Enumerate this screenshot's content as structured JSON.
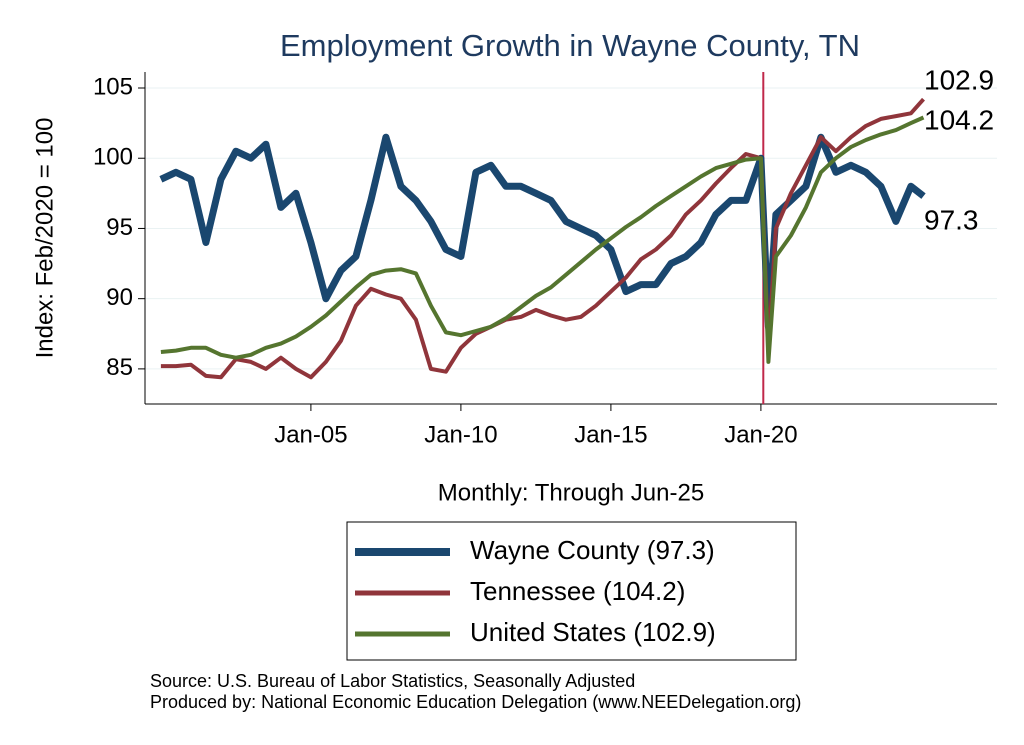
{
  "chart_data": {
    "type": "line",
    "title": "Employment Growth in Wayne  County, TN",
    "x_label": "Monthly: Through Jun-25",
    "y_label": "Index: Feb/2020 = 100",
    "source": "Source: U.S. Bureau of Labor Statistics, Seasonally Adjusted",
    "produced_by": "Produced by: National Economic Education Delegation (www.NEEDelegation.org)",
    "x": [
      2000,
      2000.5,
      2001,
      2001.5,
      2002,
      2002.5,
      2003,
      2003.5,
      2004,
      2004.5,
      2005,
      2005.5,
      2006,
      2006.5,
      2007,
      2007.5,
      2008,
      2008.5,
      2009,
      2009.5,
      2010,
      2010.5,
      2011,
      2011.5,
      2012,
      2012.5,
      2013,
      2013.5,
      2014,
      2014.5,
      2015,
      2015.5,
      2016,
      2016.5,
      2017,
      2017.5,
      2018,
      2018.5,
      2019,
      2019.5,
      2020,
      2020.25,
      2020.5,
      2021,
      2021.5,
      2022,
      2022.5,
      2023,
      2023.5,
      2024,
      2024.5,
      2025,
      2025.42
    ],
    "series": [
      {
        "name": "Wayne  County (97.3)",
        "color": "#1a476f",
        "values": [
          98.5,
          99,
          98.5,
          94,
          98.5,
          100.5,
          100,
          101,
          96.5,
          97.5,
          94,
          90,
          92,
          93,
          97,
          101.5,
          98,
          97,
          95.5,
          93.5,
          93,
          99,
          99.5,
          98,
          98,
          97.5,
          97,
          95.5,
          95,
          94.5,
          93.5,
          90.5,
          91,
          91,
          92.5,
          93,
          94,
          96,
          97,
          97,
          100,
          88,
          96,
          97,
          98,
          101.5,
          99,
          99.5,
          99,
          98,
          95.5,
          98,
          97.3
        ]
      },
      {
        "name": "Tennessee (104.2)",
        "color": "#90353b",
        "values": [
          85.2,
          85.2,
          85.3,
          84.5,
          84.4,
          85.7,
          85.5,
          85,
          85.8,
          85,
          84.4,
          85.5,
          87,
          89.5,
          90.7,
          90.3,
          90,
          88.5,
          85,
          84.8,
          86.5,
          87.5,
          88,
          88.5,
          88.7,
          89.2,
          88.8,
          88.5,
          88.7,
          89.5,
          90.5,
          91.5,
          92.8,
          93.5,
          94.5,
          96,
          97,
          98.2,
          99.3,
          100.3,
          100,
          86.5,
          95,
          97.5,
          99.5,
          101.5,
          100.5,
          101.5,
          102.3,
          102.8,
          103,
          103.2,
          104.2
        ]
      },
      {
        "name": "United States (102.9)",
        "color": "#55752f",
        "values": [
          86.2,
          86.3,
          86.5,
          86.5,
          86,
          85.8,
          86,
          86.5,
          86.8,
          87.3,
          88,
          88.8,
          89.8,
          90.8,
          91.7,
          92,
          92.1,
          91.8,
          89.5,
          87.6,
          87.4,
          87.7,
          88,
          88.6,
          89.4,
          90.2,
          90.8,
          91.7,
          92.6,
          93.5,
          94.3,
          95.1,
          95.8,
          96.6,
          97.3,
          98,
          98.7,
          99.3,
          99.6,
          99.9,
          100,
          85.5,
          93,
          94.5,
          96.5,
          99,
          100,
          100.8,
          101.3,
          101.7,
          102,
          102.5,
          102.9
        ]
      }
    ],
    "reference_line_x": 2020.08,
    "reference_line_color": "#c0284a",
    "xlim": [
      1999.47,
      2027.87
    ],
    "ylim": [
      82.5,
      106.14
    ],
    "xticks": [
      {
        "value": 2005,
        "label": "Jan-05"
      },
      {
        "value": 2010,
        "label": "Jan-10"
      },
      {
        "value": 2015,
        "label": "Jan-15"
      },
      {
        "value": 2020,
        "label": "Jan-20"
      }
    ],
    "yticks": [
      85,
      90,
      95,
      100,
      105
    ],
    "grid": true
  }
}
